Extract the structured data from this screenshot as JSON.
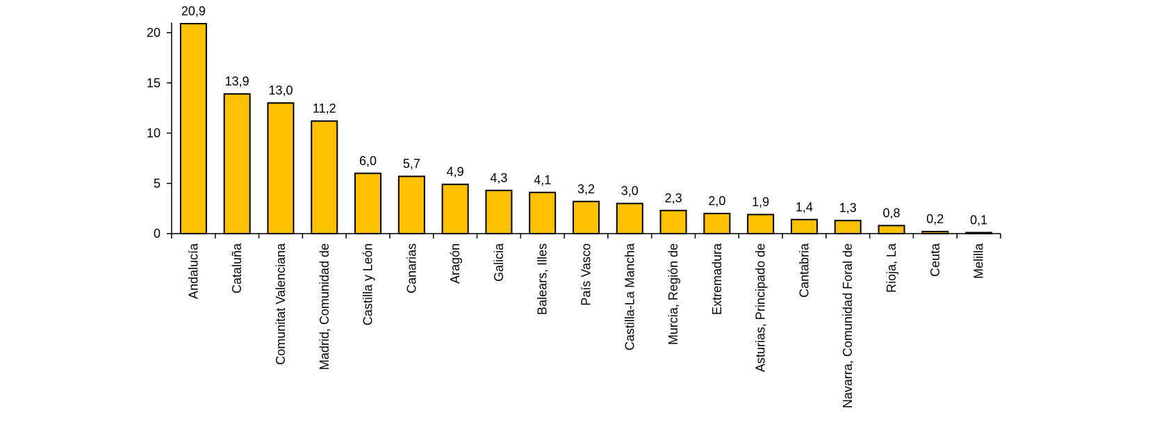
{
  "chart_data": {
    "type": "bar",
    "categories": [
      "Andalucía",
      "Cataluña",
      "Comunitat Valenciana",
      "Madrid, Comunidad de",
      "Castilla y León",
      "Canarias",
      "Aragón",
      "Galicia",
      "Balears, Illes",
      "País Vasco",
      "Castilla-La Mancha",
      "Murcia, Región de",
      "Extremadura",
      "Asturias, Principado de",
      "Cantabria",
      "Navarra, Comunidad Foral de",
      "Rioja, La",
      "Ceuta",
      "Melilla"
    ],
    "values": [
      20.9,
      13.9,
      13.0,
      11.2,
      6.0,
      5.7,
      4.9,
      4.3,
      4.1,
      3.2,
      3.0,
      2.3,
      2.0,
      1.9,
      1.4,
      1.3,
      0.8,
      0.2,
      0.1
    ],
    "data_labels": [
      "20,9",
      "13,9",
      "13,0",
      "11,2",
      "6,0",
      "5,7",
      "4,9",
      "4,3",
      "4,1",
      "3,2",
      "3,0",
      "2,3",
      "2,0",
      "1,9",
      "1,4",
      "1,3",
      "0,8",
      "0,2",
      "0,1"
    ],
    "y_ticks": [
      0,
      5,
      10,
      15,
      20
    ],
    "y_tick_labels": [
      "0",
      "5",
      "10",
      "15",
      "20"
    ],
    "ylim": [
      0,
      21
    ],
    "grid": false,
    "legend": "none",
    "bar_color": "#FFC000",
    "bar_outline_color": "#000000",
    "title": "",
    "xlabel": "",
    "ylabel": ""
  }
}
